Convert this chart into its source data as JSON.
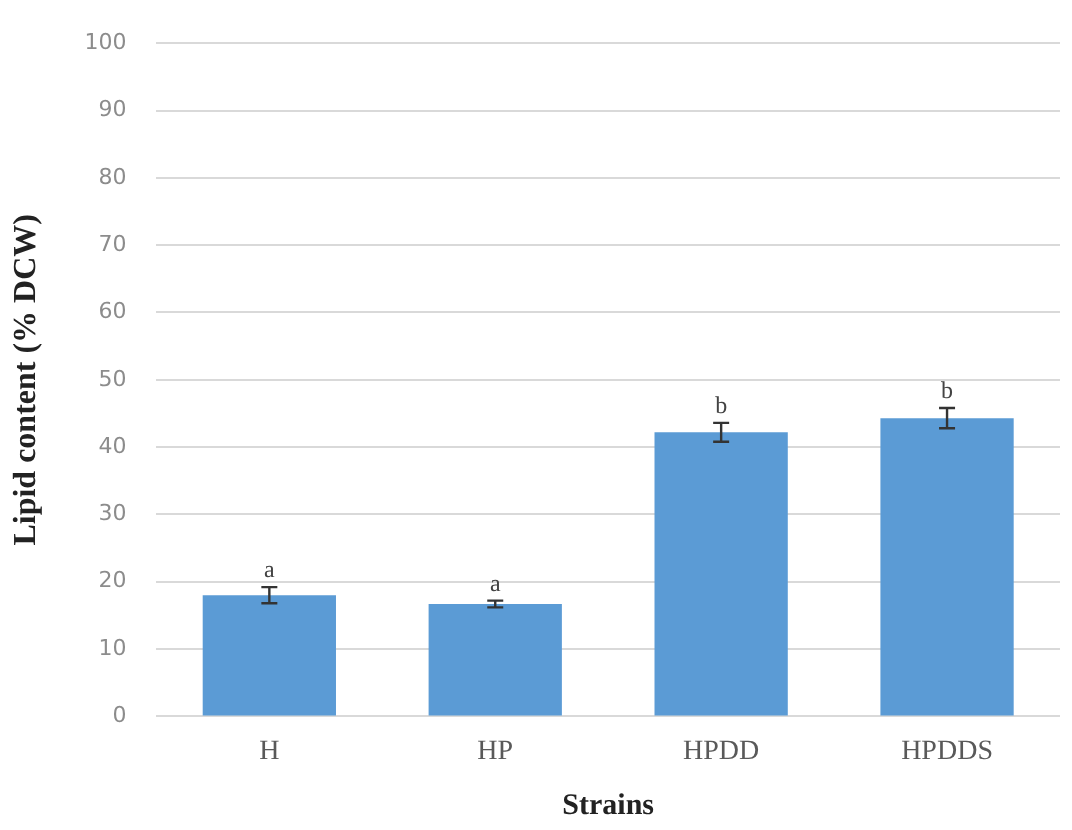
{
  "chart_data": {
    "type": "bar",
    "xlabel": "Strains",
    "ylabel": "Lipid content (% DCW)",
    "categories": [
      "H",
      "HP",
      "HPDD",
      "HPDDS"
    ],
    "values": [
      18,
      16.7,
      42.2,
      44.3
    ],
    "errors": [
      1.2,
      0.5,
      1.4,
      1.5
    ],
    "color": "#5b9bd5",
    "ylim": [
      0,
      100
    ],
    "yticks": [
      0,
      10,
      20,
      30,
      40,
      50,
      60,
      70,
      80,
      90,
      100
    ],
    "grid": "y",
    "legend": false,
    "annotations": [
      {
        "text": "a",
        "x": "H",
        "y": 19.2
      },
      {
        "text": "a",
        "x": "HP",
        "y": 17.2
      },
      {
        "text": "b",
        "x": "HPDD",
        "y": 43.6
      },
      {
        "text": "b",
        "x": "HPDDS",
        "y": 45.8
      }
    ]
  }
}
